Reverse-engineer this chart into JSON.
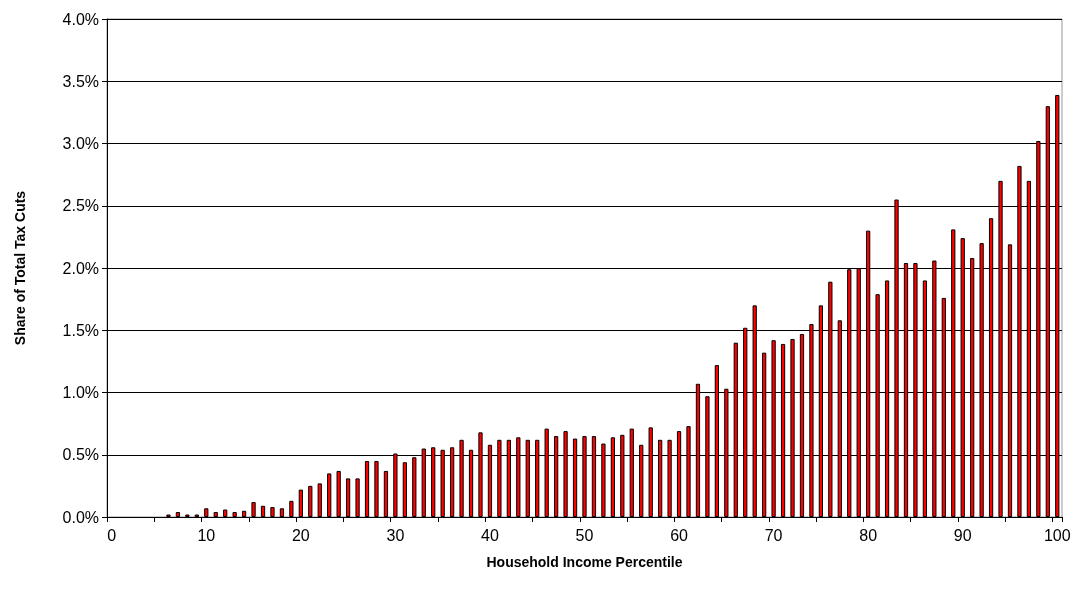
{
  "chart_data": {
    "type": "bar",
    "xlabel": "Household Income Percentile",
    "ylabel": "Share of Total Tax Cuts",
    "categories": [
      "0",
      null,
      null,
      null,
      null,
      null,
      null,
      null,
      null,
      null,
      "10",
      null,
      null,
      null,
      null,
      null,
      null,
      null,
      null,
      null,
      "20",
      null,
      null,
      null,
      null,
      null,
      null,
      null,
      null,
      null,
      "30",
      null,
      null,
      null,
      null,
      null,
      null,
      null,
      null,
      null,
      "40",
      null,
      null,
      null,
      null,
      null,
      null,
      null,
      null,
      null,
      "50",
      null,
      null,
      null,
      null,
      null,
      null,
      null,
      null,
      null,
      "60",
      null,
      null,
      null,
      null,
      null,
      null,
      null,
      null,
      null,
      "70",
      null,
      null,
      null,
      null,
      null,
      null,
      null,
      null,
      null,
      "80",
      null,
      null,
      null,
      null,
      null,
      null,
      null,
      null,
      null,
      "90",
      null,
      null,
      null,
      null,
      null,
      null,
      null,
      null,
      null,
      "100"
    ],
    "values": [
      null,
      null,
      null,
      null,
      null,
      null,
      0.02,
      0.04,
      0.02,
      0.02,
      0.07,
      0.04,
      0.06,
      0.04,
      0.05,
      0.12,
      0.09,
      0.08,
      0.07,
      0.13,
      0.22,
      0.25,
      0.27,
      0.35,
      0.37,
      0.31,
      0.31,
      0.45,
      0.45,
      0.37,
      0.51,
      0.44,
      0.48,
      0.55,
      0.56,
      0.54,
      0.56,
      0.62,
      0.54,
      0.68,
      0.58,
      0.62,
      0.62,
      0.64,
      0.62,
      0.62,
      0.71,
      0.65,
      0.69,
      0.63,
      0.65,
      0.65,
      0.59,
      0.64,
      0.66,
      0.71,
      0.58,
      0.72,
      0.62,
      0.62,
      0.69,
      0.73,
      1.07,
      0.97,
      1.22,
      1.03,
      1.4,
      1.52,
      1.7,
      1.32,
      1.42,
      1.39,
      1.43,
      1.47,
      1.55,
      1.7,
      1.89,
      1.58,
      1.99,
      2.0,
      2.3,
      1.79,
      1.9,
      2.55,
      2.04,
      2.04,
      1.9,
      2.06,
      1.76,
      2.31,
      2.24,
      2.08,
      2.2,
      2.4,
      2.7,
      2.19,
      2.82,
      2.7,
      3.02,
      3.3,
      3.39
    ],
    "color": "#ff0000",
    "ylim": [
      0,
      4
    ],
    "yticks": [
      {
        "value": 0,
        "label": "0.0%"
      },
      {
        "value": 0.5,
        "label": "0.5%"
      },
      {
        "value": 1,
        "label": "1.0%"
      },
      {
        "value": 1.5,
        "label": "1.5%"
      },
      {
        "value": 2,
        "label": "2.0%"
      },
      {
        "value": 2.5,
        "label": "2.5%"
      },
      {
        "value": 3,
        "label": "3.0%"
      },
      {
        "value": 3.5,
        "label": "3.5%"
      },
      {
        "value": 4,
        "label": "4.0%"
      }
    ],
    "grid": "y"
  }
}
